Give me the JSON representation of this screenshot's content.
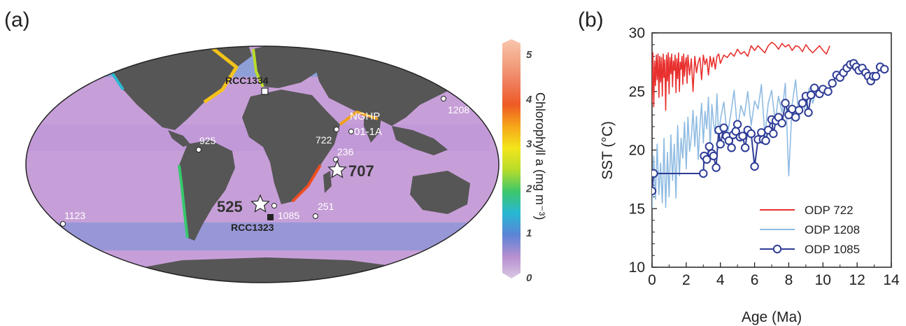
{
  "panel_a": {
    "label": "(a)",
    "sites": [
      {
        "id": "rcc1334",
        "text": "RCC1334",
        "marker": "square-open"
      },
      {
        "id": "nghp",
        "text": "NGHP",
        "text2": "01-1A",
        "marker": "circle"
      },
      {
        "id": "s1208",
        "text": "1208",
        "marker": "circle"
      },
      {
        "id": "s925",
        "text": "925",
        "marker": "circle"
      },
      {
        "id": "s722",
        "text": "722",
        "marker": "circle"
      },
      {
        "id": "s236",
        "text": "236",
        "marker": "circle"
      },
      {
        "id": "s707",
        "text": "707",
        "marker": "star"
      },
      {
        "id": "s525",
        "text": "525",
        "marker": "star"
      },
      {
        "id": "s1085",
        "text": "1085",
        "marker": "circle"
      },
      {
        "id": "s251",
        "text": "251",
        "marker": "circle"
      },
      {
        "id": "rcc1323",
        "text": "RCC1323",
        "marker": "square-filled"
      },
      {
        "id": "s1123",
        "text": "1123",
        "marker": "circle"
      }
    ],
    "colorbar": {
      "title": "Chlorophyll a (mg m⁻³)",
      "ticks": [
        "0",
        "1",
        "2",
        "3",
        "4",
        "5"
      ],
      "colors": [
        "#d9c8e3",
        "#b68fd0",
        "#5b84d6",
        "#27b7d4",
        "#3ec76a",
        "#b9dc2a",
        "#f3e51c",
        "#f6a619",
        "#ee5a24",
        "#ef7e5c",
        "#f3a585",
        "#f8c6ad"
      ]
    },
    "colors": {
      "ocean": "#c79fd8",
      "land": "#565656"
    }
  },
  "panel_b": {
    "label": "(b)"
  },
  "chart_data": {
    "type": "line",
    "xlabel": "Age (Ma)",
    "ylabel": "SST (°C)",
    "xlim": [
      0,
      14
    ],
    "ylim": [
      10,
      30
    ],
    "xticks": [
      0,
      2,
      4,
      6,
      8,
      10,
      12,
      14
    ],
    "yticks": [
      10,
      15,
      20,
      25,
      30
    ],
    "legend_position": "bottom-right",
    "series": [
      {
        "name": "ODP 722",
        "color": "#e8312f",
        "marker": "none",
        "x": [
          0.0,
          0.05,
          0.1,
          0.15,
          0.2,
          0.25,
          0.3,
          0.35,
          0.4,
          0.45,
          0.5,
          0.55,
          0.6,
          0.65,
          0.7,
          0.75,
          0.8,
          0.85,
          0.9,
          0.95,
          1.0,
          1.05,
          1.1,
          1.15,
          1.2,
          1.25,
          1.3,
          1.35,
          1.4,
          1.45,
          1.5,
          1.55,
          1.6,
          1.65,
          1.7,
          1.75,
          1.8,
          1.85,
          1.9,
          1.95,
          2.0,
          2.05,
          2.1,
          2.2,
          2.3,
          2.4,
          2.5,
          2.6,
          2.7,
          2.8,
          2.9,
          3.0,
          3.1,
          3.2,
          3.3,
          3.4,
          3.5,
          3.6,
          3.7,
          3.8,
          3.9,
          4.0,
          4.2,
          4.4,
          4.6,
          4.8,
          5.0,
          5.2,
          5.4,
          5.6,
          5.8,
          6.0,
          6.2,
          6.4,
          6.6,
          6.8,
          7.0,
          7.2,
          7.4,
          7.6,
          7.8,
          8.0,
          8.2,
          8.4,
          8.6,
          8.8,
          9.0,
          9.2,
          9.4,
          9.6,
          9.8,
          10.0,
          10.2,
          10.4
        ],
        "y": [
          24.0,
          28.3,
          23.7,
          27.6,
          25.5,
          28.1,
          26.0,
          28.2,
          24.5,
          28.0,
          25.8,
          27.9,
          24.6,
          28.2,
          26.2,
          27.7,
          23.4,
          28.1,
          25.9,
          28.3,
          24.8,
          27.9,
          26.5,
          28.2,
          25.4,
          27.6,
          26.8,
          28.1,
          24.9,
          27.8,
          26.1,
          28.3,
          25.0,
          27.5,
          26.9,
          28.0,
          25.6,
          28.2,
          26.3,
          27.4,
          27.9,
          25.7,
          28.1,
          26.4,
          27.8,
          25.0,
          28.0,
          26.6,
          27.5,
          27.9,
          26.0,
          28.1,
          27.3,
          27.8,
          26.4,
          28.0,
          27.1,
          27.9,
          26.9,
          28.0,
          28.2,
          27.4,
          28.1,
          27.9,
          28.3,
          28.0,
          28.6,
          28.2,
          28.4,
          28.0,
          28.9,
          28.5,
          28.9,
          28.6,
          28.3,
          28.9,
          29.2,
          29.0,
          28.6,
          29.1,
          28.8,
          29.0,
          28.5,
          28.9,
          28.8,
          28.4,
          29.0,
          28.6,
          28.3,
          28.6,
          28.9,
          28.5,
          28.2,
          28.9
        ]
      },
      {
        "name": "ODP 1208",
        "color": "#8fbbe2",
        "marker": "none",
        "x": [
          0.0,
          0.1,
          0.2,
          0.3,
          0.4,
          0.5,
          0.6,
          0.7,
          0.8,
          0.9,
          1.0,
          1.1,
          1.2,
          1.3,
          1.4,
          1.5,
          1.6,
          1.7,
          1.8,
          1.9,
          2.0,
          2.1,
          2.2,
          2.3,
          2.4,
          2.5,
          2.6,
          2.7,
          2.8,
          2.9,
          3.0,
          3.1,
          3.2,
          3.3,
          3.4,
          3.5,
          3.6,
          3.7,
          3.8,
          3.9,
          4.0,
          4.2,
          4.4,
          4.6,
          4.8,
          5.0,
          5.2,
          5.4,
          5.6,
          5.8,
          6.0,
          6.2,
          6.4,
          6.6,
          6.8,
          7.0,
          7.2,
          7.4,
          7.6,
          7.8,
          8.0,
          8.2,
          8.4,
          8.6,
          8.8,
          9.0,
          9.2,
          9.4,
          9.6
        ],
        "y": [
          15.0,
          19.5,
          15.8,
          20.5,
          16.2,
          18.9,
          15.5,
          21.0,
          15.1,
          19.8,
          16.0,
          21.3,
          17.4,
          20.5,
          15.9,
          22.1,
          17.8,
          21.0,
          19.3,
          22.4,
          18.4,
          22.8,
          19.9,
          21.1,
          23.4,
          20.3,
          22.9,
          19.2,
          22.0,
          24.0,
          20.6,
          23.3,
          21.8,
          24.5,
          20.1,
          23.9,
          22.3,
          21.4,
          24.8,
          20.9,
          22.6,
          24.1,
          21.2,
          23.0,
          25.1,
          21.7,
          23.8,
          22.9,
          25.0,
          22.1,
          24.2,
          23.5,
          25.6,
          21.2,
          24.0,
          25.1,
          22.4,
          24.6,
          23.2,
          25.7,
          17.8,
          23.9,
          26.0,
          22.7,
          24.4,
          23.1,
          25.3,
          24.0,
          25.0
        ]
      },
      {
        "name": "ODP 1085",
        "color": "#2e3c96",
        "marker": "circle",
        "x": [
          0.0,
          0.1,
          3.0,
          3.05,
          3.2,
          3.35,
          3.5,
          3.6,
          3.75,
          3.9,
          4.0,
          4.2,
          4.35,
          4.5,
          4.65,
          4.75,
          4.9,
          5.0,
          5.15,
          5.3,
          5.45,
          5.6,
          5.8,
          6.0,
          6.2,
          6.4,
          6.5,
          6.65,
          6.8,
          7.0,
          7.1,
          7.25,
          7.4,
          7.6,
          7.8,
          8.0,
          8.2,
          8.4,
          8.6,
          8.8,
          9.0,
          9.15,
          9.3,
          9.5,
          9.8,
          10.0,
          10.3,
          10.55,
          10.8,
          11.0,
          11.2,
          11.4,
          11.6,
          11.8,
          11.95,
          12.1,
          12.3,
          12.5,
          12.65,
          12.8,
          12.95,
          13.1,
          13.35,
          13.6
        ],
        "y": [
          16.5,
          18.0,
          18.0,
          19.5,
          19.2,
          20.3,
          19.7,
          19.5,
          18.5,
          21.7,
          20.5,
          21.9,
          21.2,
          20.8,
          20.2,
          21.3,
          21.6,
          22.2,
          21.1,
          21.2,
          20.2,
          21.7,
          21.4,
          18.6,
          20.9,
          21.5,
          20.9,
          20.8,
          21.7,
          22.6,
          21.4,
          22.5,
          22.8,
          22.3,
          24.0,
          23.0,
          23.5,
          22.8,
          23.4,
          24.0,
          24.6,
          23.2,
          24.7,
          25.3,
          24.8,
          25.2,
          25.0,
          25.7,
          26.4,
          26.2,
          26.6,
          27.0,
          27.3,
          27.4,
          27.1,
          26.8,
          27.0,
          26.6,
          26.3,
          25.9,
          26.3,
          26.3,
          27.1,
          26.9
        ]
      }
    ]
  }
}
